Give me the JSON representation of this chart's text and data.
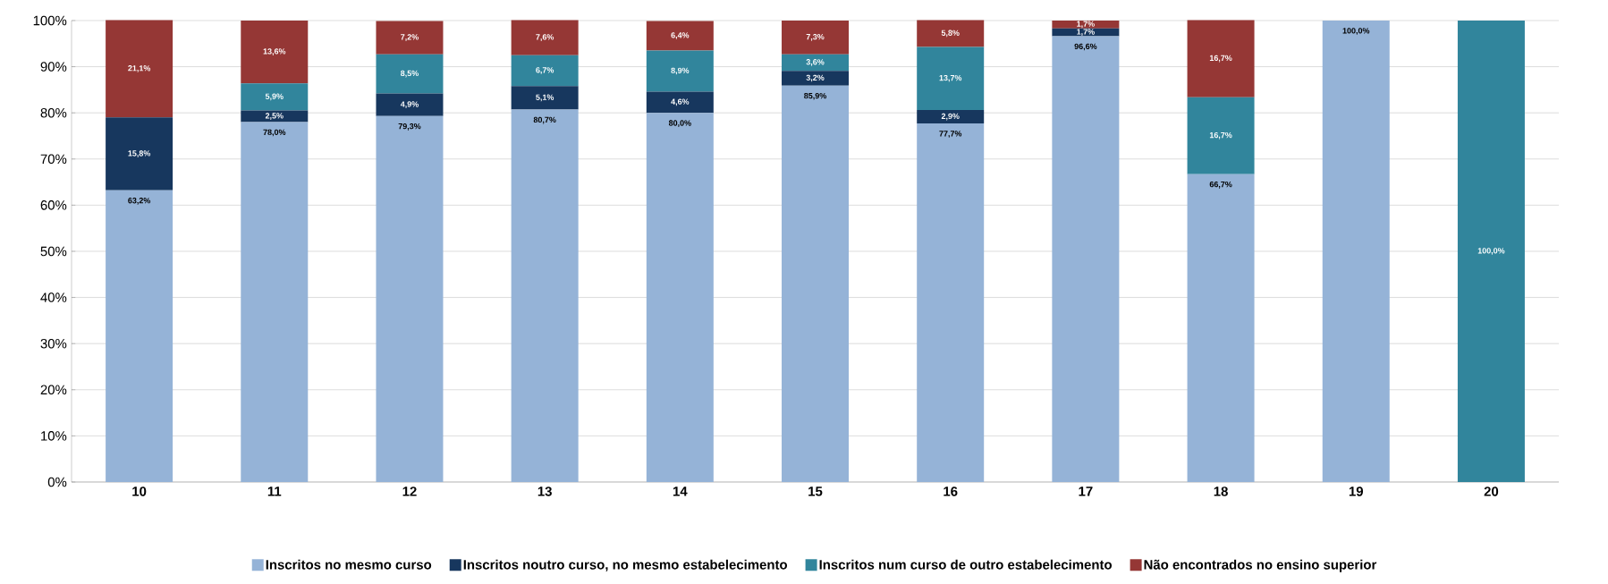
{
  "chart_data": {
    "type": "bar",
    "stacked": true,
    "categories": [
      "10",
      "11",
      "12",
      "13",
      "14",
      "15",
      "16",
      "17",
      "18",
      "19",
      "20"
    ],
    "series": [
      {
        "name": "Inscritos no mesmo curso",
        "color": "#95b3d7",
        "values": [
          63.2,
          78.0,
          79.3,
          80.7,
          80.0,
          85.9,
          77.7,
          96.6,
          66.7,
          100.0,
          0
        ],
        "value_labels": [
          "63,2%",
          "78,0%",
          "79,3%",
          "80,7%",
          "80,0%",
          "85,9%",
          "77,7%",
          "96,6%",
          "66,7%",
          "100,0%",
          null
        ]
      },
      {
        "name": "Inscritos noutro curso, no mesmo estabelecimento",
        "color": "#17375e",
        "values": [
          15.8,
          2.5,
          4.9,
          5.1,
          4.6,
          3.2,
          2.9,
          1.7,
          0,
          0,
          0
        ],
        "value_labels": [
          "15,8%",
          "2,5%",
          "4,9%",
          "5,1%",
          "4,6%",
          "3,2%",
          "2,9%",
          "1,7%",
          null,
          null,
          null
        ]
      },
      {
        "name": "Inscritos num curso de outro estabelecimento",
        "color": "#31859c",
        "values": [
          0,
          5.9,
          8.5,
          6.7,
          8.9,
          3.6,
          13.7,
          0,
          16.7,
          0,
          100.0
        ],
        "value_labels": [
          null,
          "5,9%",
          "8,5%",
          "6,7%",
          "8,9%",
          "3,6%",
          "13,7%",
          null,
          "16,7%",
          null,
          "100,0%"
        ]
      },
      {
        "name": "Não encontrados no ensino superior",
        "color": "#953735",
        "values": [
          21.1,
          13.6,
          7.2,
          7.6,
          6.4,
          7.3,
          5.8,
          1.7,
          16.7,
          0,
          0
        ],
        "value_labels": [
          "21,1%",
          "13,6%",
          "7,2%",
          "7,6%",
          "6,4%",
          "7,3%",
          "5,8%",
          "1,7%",
          "16,7%",
          null,
          null
        ]
      }
    ],
    "ylim": [
      0,
      100
    ],
    "yticks": [
      {
        "value": 0,
        "label": "0%"
      },
      {
        "value": 10,
        "label": "10%"
      },
      {
        "value": 20,
        "label": "20%"
      },
      {
        "value": 30,
        "label": "30%"
      },
      {
        "value": 40,
        "label": "40%"
      },
      {
        "value": 50,
        "label": "50%"
      },
      {
        "value": 60,
        "label": "60%"
      },
      {
        "value": 70,
        "label": "70%"
      },
      {
        "value": 80,
        "label": "80%"
      },
      {
        "value": 90,
        "label": "90%"
      },
      {
        "value": 100,
        "label": "100%"
      }
    ],
    "grid": "y",
    "legend": "bottom"
  }
}
